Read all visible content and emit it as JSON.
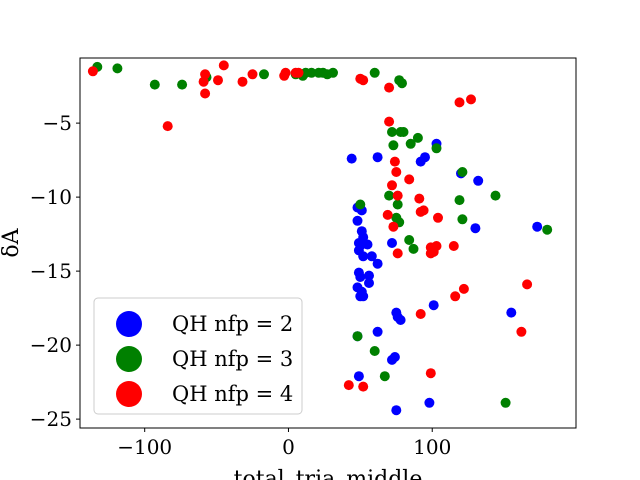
{
  "chart_data": {
    "type": "scatter",
    "xlabel": "total_tria_middle",
    "ylabel": "δA",
    "xlim": [
      -145,
      200
    ],
    "ylim": [
      -25.6,
      -0.6
    ],
    "xticks": [
      -100,
      0,
      100
    ],
    "yticks": [
      -5,
      -10,
      -15,
      -20,
      -25
    ],
    "xtick_labels": [
      "−100",
      "0",
      "100"
    ],
    "ytick_labels": [
      "−5",
      "−10",
      "−15",
      "−20",
      "−25"
    ],
    "legend_position": "lower-left",
    "series": [
      {
        "name": "QH nfp = 2",
        "color": "#0000ff",
        "points": [
          [
            44,
            -7.4
          ],
          [
            62,
            -7.3
          ],
          [
            103,
            -6.4
          ],
          [
            95,
            -7.3
          ],
          [
            92,
            -7.6
          ],
          [
            132,
            -8.9
          ],
          [
            120,
            -8.4
          ],
          [
            48,
            -10.7
          ],
          [
            51,
            -10.9
          ],
          [
            48,
            -11.6
          ],
          [
            51,
            -12.3
          ],
          [
            52,
            -12.7
          ],
          [
            49,
            -13.1
          ],
          [
            51,
            -13.2
          ],
          [
            49,
            -13.6
          ],
          [
            55,
            -13.2
          ],
          [
            52,
            -14.0
          ],
          [
            58,
            -14.0
          ],
          [
            62,
            -14.5
          ],
          [
            72,
            -13.1
          ],
          [
            49,
            -15.1
          ],
          [
            56,
            -15.3
          ],
          [
            50,
            -15.4
          ],
          [
            56,
            -15.8
          ],
          [
            48,
            -16.1
          ],
          [
            51,
            -16.4
          ],
          [
            50,
            -16.7
          ],
          [
            52,
            -16.7
          ],
          [
            130,
            -12.1
          ],
          [
            173,
            -12.0
          ],
          [
            155,
            -17.8
          ],
          [
            101,
            -17.3
          ],
          [
            75,
            -17.8
          ],
          [
            76,
            -18.1
          ],
          [
            78,
            -18.3
          ],
          [
            48,
            -19.4
          ],
          [
            62,
            -19.1
          ],
          [
            74,
            -20.8
          ],
          [
            72,
            -21.0
          ],
          [
            49,
            -22.1
          ],
          [
            98,
            -23.9
          ],
          [
            75,
            -24.4
          ]
        ]
      },
      {
        "name": "QH nfp = 3",
        "color": "#008000",
        "points": [
          [
            -133,
            -1.2
          ],
          [
            -119,
            -1.3
          ],
          [
            -93,
            -2.4
          ],
          [
            -74,
            -2.4
          ],
          [
            -57,
            -1.9
          ],
          [
            -17,
            -1.7
          ],
          [
            5,
            -1.7
          ],
          [
            10,
            -1.8
          ],
          [
            12,
            -1.6
          ],
          [
            16,
            -1.6
          ],
          [
            21,
            -1.6
          ],
          [
            24,
            -1.6
          ],
          [
            27,
            -1.7
          ],
          [
            31,
            -1.6
          ],
          [
            60,
            -1.6
          ],
          [
            77,
            -2.1
          ],
          [
            79,
            -2.3
          ],
          [
            72,
            -5.6
          ],
          [
            78,
            -5.6
          ],
          [
            80,
            -5.6
          ],
          [
            73,
            -6.5
          ],
          [
            85,
            -6.4
          ],
          [
            90,
            -6.0
          ],
          [
            103,
            -6.7
          ],
          [
            121,
            -8.3
          ],
          [
            144,
            -9.9
          ],
          [
            119,
            -10.2
          ],
          [
            70,
            -9.9
          ],
          [
            76,
            -10.5
          ],
          [
            50,
            -10.5
          ],
          [
            121,
            -11.5
          ],
          [
            75,
            -11.4
          ],
          [
            77,
            -11.7
          ],
          [
            84,
            -12.9
          ],
          [
            87,
            -13.5
          ],
          [
            180,
            -12.2
          ],
          [
            48,
            -19.4
          ],
          [
            60,
            -20.4
          ],
          [
            67,
            -22.1
          ],
          [
            151,
            -23.9
          ]
        ]
      },
      {
        "name": "QH nfp = 4",
        "color": "#ff0000",
        "points": [
          [
            -136,
            -1.5
          ],
          [
            -58,
            -1.7
          ],
          [
            -59,
            -2.2
          ],
          [
            -58,
            -3.0
          ],
          [
            -49,
            -2.1
          ],
          [
            -45,
            -1.1
          ],
          [
            -32,
            -2.2
          ],
          [
            -25,
            -1.7
          ],
          [
            -3,
            -1.8
          ],
          [
            -2,
            -1.6
          ],
          [
            5,
            -1.6
          ],
          [
            7,
            -1.6
          ],
          [
            50,
            -2.0
          ],
          [
            52,
            -2.1
          ],
          [
            70,
            -2.6
          ],
          [
            119,
            -3.6
          ],
          [
            127,
            -3.4
          ],
          [
            -84,
            -5.2
          ],
          [
            70,
            -4.9
          ],
          [
            74,
            -7.6
          ],
          [
            75,
            -8.3
          ],
          [
            84,
            -8.8
          ],
          [
            72,
            -9.2
          ],
          [
            76,
            -9.9
          ],
          [
            91,
            -10.1
          ],
          [
            92,
            -11.0
          ],
          [
            94,
            -10.9
          ],
          [
            69,
            -11.2
          ],
          [
            104,
            -11.4
          ],
          [
            73,
            -12.0
          ],
          [
            76,
            -13.8
          ],
          [
            99,
            -13.4
          ],
          [
            103,
            -13.3
          ],
          [
            101,
            -13.7
          ],
          [
            99,
            -13.8
          ],
          [
            115,
            -13.3
          ],
          [
            122,
            -16.2
          ],
          [
            116,
            -16.7
          ],
          [
            166,
            -15.9
          ],
          [
            92,
            -17.9
          ],
          [
            162,
            -19.1
          ],
          [
            99,
            -21.9
          ],
          [
            42,
            -22.7
          ],
          [
            52,
            -22.8
          ]
        ]
      }
    ]
  }
}
